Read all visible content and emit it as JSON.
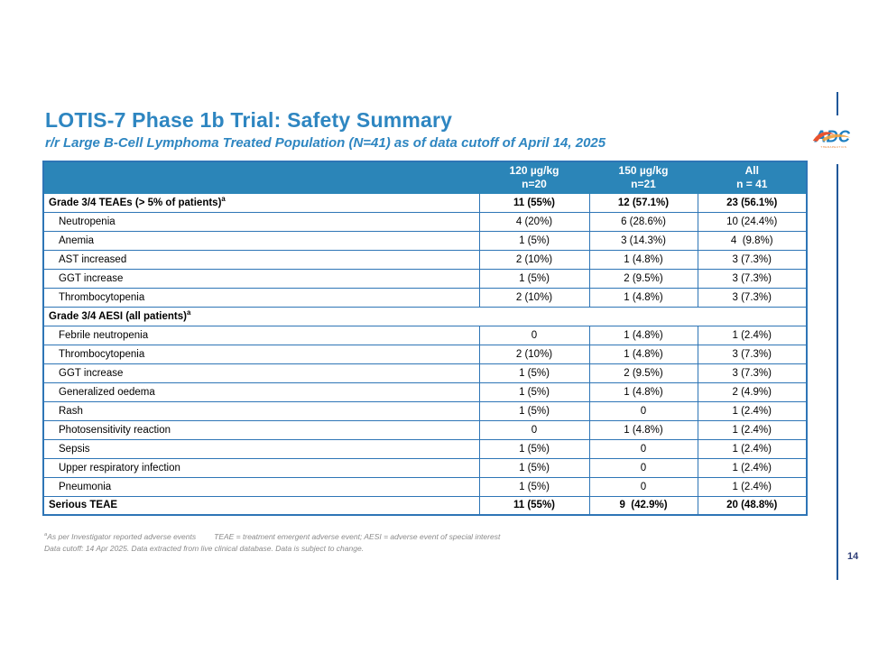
{
  "slide": {
    "title": "LOTIS-7 Phase 1b Trial: Safety Summary",
    "subtitle": "r/r Large B-Cell Lymphoma Treated Population (N=41) as of data cutoff of April 14, 2025",
    "page_number": "14",
    "logo_text": "ADC",
    "logo_sub": "THERAPEUTICS"
  },
  "colors": {
    "header_bg": "#2B85B8",
    "table_border": "#2E75B6",
    "title_blue": "#2E86C1",
    "accent_line": "#1F5799",
    "page_number": "#2F3E78",
    "footnote_gray": "#8A8A8A",
    "logo_blue": "#1E7FC0",
    "logo_orange": "#E87722"
  },
  "table": {
    "columns": [
      {
        "line1": "",
        "line2": ""
      },
      {
        "line1": "120 µg/kg",
        "line2": "n=20"
      },
      {
        "line1": "150 µg/kg",
        "line2": "n=21"
      },
      {
        "line1": "All",
        "line2": "n = 41"
      }
    ],
    "rows": [
      {
        "label": "Grade 3/4 TEAEs (> 5% of patients)",
        "sup": "a",
        "type": "section",
        "values": [
          "11 (55%)",
          "12 (57.1%)",
          "23 (56.1%)"
        ]
      },
      {
        "label": "Neutropenia",
        "type": "sub",
        "values": [
          "4 (20%)",
          "6 (28.6%)",
          "10 (24.4%)"
        ]
      },
      {
        "label": "Anemia",
        "type": "sub",
        "values": [
          "1 (5%)",
          "3 (14.3%)",
          "4  (9.8%)"
        ]
      },
      {
        "label": "AST increased",
        "type": "sub",
        "values": [
          "2 (10%)",
          "1 (4.8%)",
          "3 (7.3%)"
        ]
      },
      {
        "label": "GGT increase",
        "type": "sub",
        "values": [
          "1 (5%)",
          "2 (9.5%)",
          "3 (7.3%)"
        ]
      },
      {
        "label": "Thrombocytopenia",
        "type": "sub",
        "values": [
          "2 (10%)",
          "1 (4.8%)",
          "3 (7.3%)"
        ]
      },
      {
        "label": "Grade 3/4 AESI (all patients)",
        "sup": "a",
        "type": "section-span",
        "values": []
      },
      {
        "label": "Febrile neutropenia",
        "type": "sub",
        "values": [
          "0",
          "1 (4.8%)",
          "1 (2.4%)"
        ]
      },
      {
        "label": "Thrombocytopenia",
        "type": "sub",
        "values": [
          "2 (10%)",
          "1 (4.8%)",
          "3 (7.3%)"
        ]
      },
      {
        "label": "GGT increase",
        "type": "sub",
        "values": [
          "1 (5%)",
          "2 (9.5%)",
          "3 (7.3%)"
        ]
      },
      {
        "label": "Generalized oedema",
        "type": "sub",
        "values": [
          "1 (5%)",
          "1 (4.8%)",
          "2 (4.9%)"
        ]
      },
      {
        "label": "Rash",
        "type": "sub",
        "values": [
          "1 (5%)",
          "0",
          "1 (2.4%)"
        ]
      },
      {
        "label": "Photosensitivity reaction",
        "type": "sub",
        "values": [
          "0",
          "1 (4.8%)",
          "1 (2.4%)"
        ]
      },
      {
        "label": "Sepsis",
        "type": "sub",
        "values": [
          "1 (5%)",
          "0",
          "1 (2.4%)"
        ]
      },
      {
        "label": "Upper respiratory infection",
        "type": "sub",
        "values": [
          "1 (5%)",
          "0",
          "1 (2.4%)"
        ]
      },
      {
        "label": "Pneumonia",
        "type": "sub",
        "values": [
          "1 (5%)",
          "0",
          "1 (2.4%)"
        ]
      },
      {
        "label": "Serious TEAE",
        "type": "section",
        "values": [
          "11 (55%)",
          "9  (42.9%)",
          "20 (48.8%)"
        ]
      }
    ]
  },
  "footnotes": {
    "line1_sup": "a",
    "line1a": "As per Investigator reported adverse events",
    "line1b": "TEAE = treatment emergent adverse event; AESI = adverse event of special interest",
    "line2": "Data cutoff: 14 Apr 2025. Data extracted from live clinical database.  Data is subject to change."
  }
}
